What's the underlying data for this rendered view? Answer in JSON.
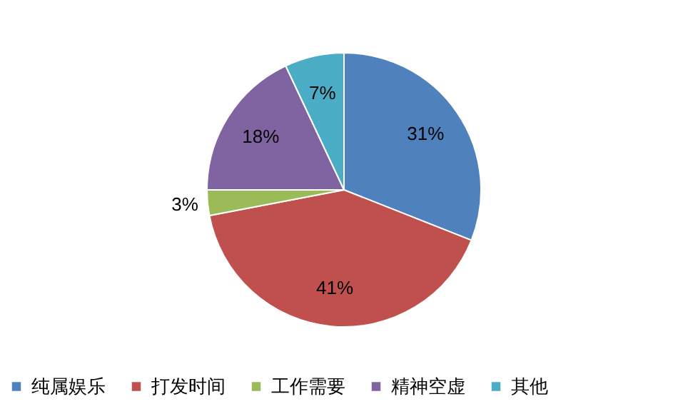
{
  "chart_data": {
    "type": "pie",
    "categories": [
      "纯属娱乐",
      "打发时间",
      "工作需要",
      "精神空虚",
      "其他"
    ],
    "values": [
      31,
      41,
      3,
      18,
      7
    ],
    "colors": [
      "#4f81bd",
      "#c0504d",
      "#9bbb59",
      "#8064a2",
      "#4bacc6"
    ],
    "value_labels": [
      "31%",
      "41%",
      "3%",
      "18%",
      "7%"
    ],
    "legend": "bottom"
  }
}
